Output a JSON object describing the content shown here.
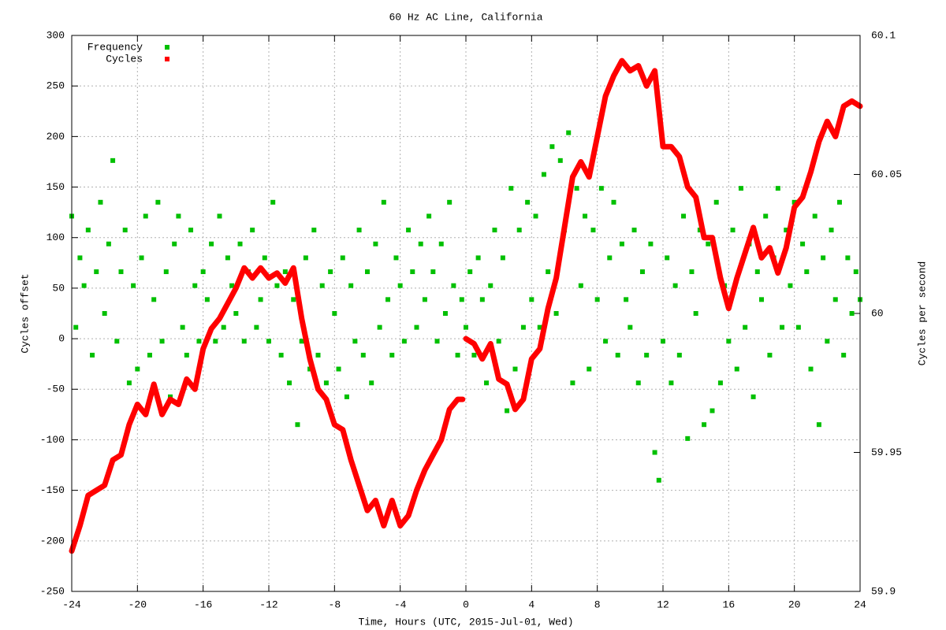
{
  "chart_data": {
    "type": "line",
    "title": "60 Hz AC Line, California",
    "xlabel": "Time, Hours (UTC, 2015-Jul-01, Wed)",
    "ylabel": "Cycles offset",
    "y2label": "Cycles per second",
    "xlim": [
      -24,
      24
    ],
    "xticks": [
      -24,
      -20,
      -16,
      -12,
      -8,
      -4,
      0,
      4,
      8,
      12,
      16,
      20,
      24
    ],
    "ylim": [
      -250,
      300
    ],
    "yticks": [
      -250,
      -200,
      -150,
      -100,
      -50,
      0,
      50,
      100,
      150,
      200,
      250,
      300
    ],
    "y2lim": [
      59.9,
      60.1
    ],
    "y2ticks": [
      59.9,
      59.95,
      60,
      60.05,
      60.1
    ],
    "grid": true,
    "legend": "top-left",
    "series": [
      {
        "name": "Frequency",
        "color": "#00c000",
        "style": "points",
        "axis": "y2",
        "x": [
          -24,
          -23.75,
          -23.5,
          -23.25,
          -23,
          -22.75,
          -22.5,
          -22.25,
          -22,
          -21.75,
          -21.5,
          -21.25,
          -21,
          -20.75,
          -20.5,
          -20.25,
          -20,
          -19.75,
          -19.5,
          -19.25,
          -19,
          -18.75,
          -18.5,
          -18.25,
          -18,
          -17.75,
          -17.5,
          -17.25,
          -17,
          -16.75,
          -16.5,
          -16.25,
          -16,
          -15.75,
          -15.5,
          -15.25,
          -15,
          -14.75,
          -14.5,
          -14.25,
          -14,
          -13.75,
          -13.5,
          -13.25,
          -13,
          -12.75,
          -12.5,
          -12.25,
          -12,
          -11.75,
          -11.5,
          -11.25,
          -11,
          -10.75,
          -10.5,
          -10.25,
          -10,
          -9.75,
          -9.5,
          -9.25,
          -9,
          -8.75,
          -8.5,
          -8.25,
          -8,
          -7.75,
          -7.5,
          -7.25,
          -7,
          -6.75,
          -6.5,
          -6.25,
          -6,
          -5.75,
          -5.5,
          -5.25,
          -5,
          -4.75,
          -4.5,
          -4.25,
          -4,
          -3.75,
          -3.5,
          -3.25,
          -3,
          -2.75,
          -2.5,
          -2.25,
          -2,
          -1.75,
          -1.5,
          -1.25,
          -1,
          -0.75,
          -0.5,
          -0.25,
          0,
          0.25,
          0.5,
          0.75,
          1,
          1.25,
          1.5,
          1.75,
          2,
          2.25,
          2.5,
          2.75,
          3,
          3.25,
          3.5,
          3.75,
          4,
          4.25,
          4.5,
          4.75,
          5,
          5.25,
          5.5,
          5.75,
          6,
          6.25,
          6.5,
          6.75,
          7,
          7.25,
          7.5,
          7.75,
          8,
          8.25,
          8.5,
          8.75,
          9,
          9.25,
          9.5,
          9.75,
          10,
          10.25,
          10.5,
          10.75,
          11,
          11.25,
          11.5,
          11.75,
          12,
          12.25,
          12.5,
          12.75,
          13,
          13.25,
          13.5,
          13.75,
          14,
          14.25,
          14.5,
          14.75,
          15,
          15.25,
          15.5,
          15.75,
          16,
          16.25,
          16.5,
          16.75,
          17,
          17.25,
          17.5,
          17.75,
          18,
          18.25,
          18.5,
          18.75,
          19,
          19.25,
          19.5,
          19.75,
          20,
          20.25,
          20.5,
          20.75,
          21,
          21.25,
          21.5,
          21.75,
          22,
          22.25,
          22.5,
          22.75,
          23,
          23.25,
          23.5,
          23.75,
          24
        ],
        "values": [
          60.035,
          59.995,
          60.02,
          60.01,
          60.03,
          59.985,
          60.015,
          60.04,
          60.0,
          60.025,
          60.055,
          59.99,
          60.015,
          60.03,
          59.975,
          60.01,
          59.98,
          60.02,
          60.035,
          59.985,
          60.005,
          60.04,
          59.99,
          60.015,
          59.97,
          60.025,
          60.035,
          59.995,
          59.985,
          60.03,
          60.01,
          59.99,
          60.015,
          60.005,
          60.025,
          59.99,
          60.035,
          59.995,
          60.02,
          60.01,
          60.0,
          60.025,
          59.99,
          60.015,
          60.03,
          59.995,
          60.005,
          60.02,
          59.99,
          60.04,
          60.01,
          59.985,
          60.015,
          59.975,
          60.005,
          59.96,
          59.99,
          60.02,
          59.98,
          60.03,
          59.985,
          60.01,
          59.975,
          60.015,
          60.0,
          59.98,
          60.02,
          59.97,
          60.01,
          59.99,
          60.03,
          59.985,
          60.015,
          59.975,
          60.025,
          59.995,
          60.04,
          60.005,
          59.985,
          60.02,
          60.01,
          59.99,
          60.03,
          60.015,
          59.995,
          60.025,
          60.005,
          60.035,
          60.015,
          59.99,
          60.025,
          60.0,
          60.04,
          60.01,
          59.985,
          60.005,
          59.995,
          60.015,
          59.985,
          60.02,
          60.005,
          59.975,
          60.01,
          60.03,
          59.99,
          60.02,
          59.965,
          60.045,
          59.98,
          60.03,
          59.995,
          60.04,
          60.005,
          60.035,
          59.995,
          60.05,
          60.015,
          60.06,
          60.0,
          60.055,
          60.03,
          60.065,
          59.975,
          60.045,
          60.01,
          60.035,
          59.98,
          60.03,
          60.005,
          60.045,
          59.99,
          60.02,
          60.04,
          59.985,
          60.025,
          60.005,
          59.995,
          60.03,
          59.975,
          60.015,
          59.985,
          60.025,
          59.95,
          59.94,
          59.99,
          60.02,
          59.975,
          60.01,
          59.985,
          60.035,
          59.955,
          60.015,
          60.0,
          60.03,
          59.96,
          60.025,
          59.965,
          60.04,
          59.975,
          60.01,
          59.99,
          60.03,
          59.98,
          60.045,
          59.995,
          60.025,
          59.97,
          60.015,
          60.005,
          60.035,
          59.985,
          60.02,
          60.045,
          59.995,
          60.03,
          60.01,
          60.04,
          59.995,
          60.025,
          60.015,
          59.98,
          60.035,
          59.96,
          60.02,
          59.99,
          60.03,
          60.005,
          60.04,
          59.985,
          60.02,
          60.0,
          60.015,
          60.005
        ]
      },
      {
        "name": "Cycles",
        "color": "#ff0000",
        "style": "lines",
        "axis": "y",
        "x": [
          -24,
          -23.5,
          -23,
          -22.5,
          -22,
          -21.5,
          -21,
          -20.5,
          -20,
          -19.5,
          -19,
          -18.5,
          -18,
          -17.5,
          -17,
          -16.5,
          -16,
          -15.5,
          -15,
          -14.5,
          -14,
          -13.5,
          -13,
          -12.5,
          -12,
          -11.5,
          -11,
          -10.5,
          -10,
          -9.5,
          -9,
          -8.5,
          -8,
          -7.5,
          -7,
          -6.5,
          -6,
          -5.5,
          -5,
          -4.5,
          -4,
          -3.5,
          -3,
          -2.5,
          -2,
          -1.5,
          -1,
          -0.5,
          -0.2,
          -0.1,
          0,
          0.5,
          1,
          1.5,
          2,
          2.5,
          3,
          3.5,
          4,
          4.5,
          5,
          5.5,
          6,
          6.5,
          7,
          7.5,
          8,
          8.5,
          9,
          9.5,
          10,
          10.5,
          11,
          11.5,
          12,
          12.5,
          13,
          13.5,
          14,
          14.5,
          15,
          15.5,
          16,
          16.5,
          17,
          17.5,
          18,
          18.5,
          19,
          19.5,
          20,
          20.5,
          21,
          21.5,
          22,
          22.5,
          23,
          23.5,
          24
        ],
        "values": [
          -210,
          -185,
          -155,
          -150,
          -145,
          -120,
          -115,
          -85,
          -65,
          -75,
          -45,
          -75,
          -60,
          -65,
          -40,
          -50,
          -10,
          10,
          20,
          35,
          50,
          70,
          60,
          70,
          60,
          65,
          55,
          70,
          20,
          -20,
          -50,
          -60,
          -85,
          -90,
          -120,
          -145,
          -170,
          -160,
          -185,
          -160,
          -185,
          -175,
          -150,
          -130,
          -115,
          -100,
          -70,
          -60,
          -60,
          null,
          0,
          -5,
          -20,
          -5,
          -40,
          -45,
          -70,
          -60,
          -20,
          -10,
          30,
          60,
          110,
          160,
          175,
          160,
          200,
          240,
          260,
          275,
          265,
          270,
          250,
          265,
          190,
          190,
          180,
          150,
          140,
          100,
          100,
          60,
          30,
          60,
          85,
          110,
          80,
          90,
          65,
          90,
          130,
          140,
          165,
          195,
          215,
          200,
          230,
          235,
          230
        ]
      }
    ]
  }
}
